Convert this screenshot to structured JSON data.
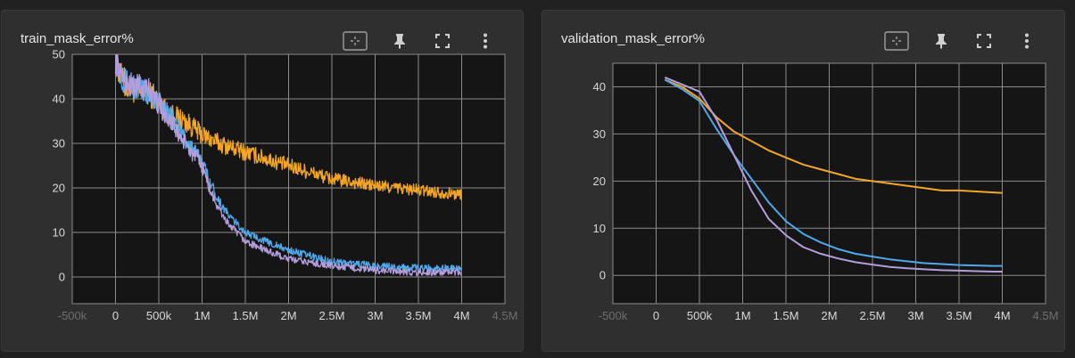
{
  "colors": {
    "orange": "#f5a623",
    "blue": "#4fa8ea",
    "lavender": "#b39ddb",
    "grid": "#8a8a8a",
    "plot_bg": "#151515"
  },
  "toolbar_icons": [
    "fit-domain-icon",
    "pin-icon",
    "fullscreen-icon",
    "more-vert-icon"
  ],
  "chart_data": [
    {
      "type": "line",
      "title": "train_mask_error%",
      "xlim": [
        -500000,
        4500000
      ],
      "ylim": [
        -6,
        50
      ],
      "x_ticks": [
        -500000,
        0,
        500000,
        1000000,
        1500000,
        2000000,
        2500000,
        3000000,
        3500000,
        4000000,
        4500000
      ],
      "x_tick_labels": [
        "-500k",
        "0",
        "500k",
        "1M",
        "1.5M",
        "2M",
        "2.5M",
        "3M",
        "3.5M",
        "4M",
        "4.5M"
      ],
      "y_ticks": [
        0,
        10,
        20,
        30,
        40,
        50
      ],
      "y_tick_labels": [
        "0",
        "10",
        "20",
        "30",
        "40",
        "50"
      ],
      "grid": true,
      "series": [
        {
          "color": "orange",
          "x": [
            0,
            100000,
            200000,
            400000,
            600000,
            800000,
            1000000,
            1200000,
            1500000,
            2000000,
            2500000,
            3000000,
            3500000,
            4000000
          ],
          "y": [
            49,
            43,
            42,
            41,
            37,
            35,
            32,
            30,
            28,
            25,
            22,
            20.5,
            19.5,
            18.5
          ]
        },
        {
          "color": "blue",
          "x": [
            0,
            100000,
            200000,
            400000,
            600000,
            800000,
            1000000,
            1100000,
            1200000,
            1300000,
            1500000,
            1800000,
            2000000,
            2500000,
            3000000,
            3500000,
            4000000
          ],
          "y": [
            49,
            44,
            43,
            41,
            37,
            31,
            26,
            21,
            17,
            14,
            10,
            7.5,
            6,
            3.5,
            2.5,
            2,
            2
          ]
        },
        {
          "color": "lavender",
          "x": [
            0,
            100000,
            200000,
            400000,
            600000,
            800000,
            1000000,
            1100000,
            1200000,
            1300000,
            1500000,
            1800000,
            2000000,
            2500000,
            3000000,
            3500000,
            4000000
          ],
          "y": [
            49,
            44,
            43,
            42,
            36,
            30,
            25,
            19,
            15,
            12,
            8,
            5.5,
            4,
            2.5,
            1.5,
            1,
            1
          ]
        }
      ]
    },
    {
      "type": "line",
      "title": "validation_mask_error%",
      "xlim": [
        -500000,
        4500000
      ],
      "ylim": [
        -6,
        45
      ],
      "x_ticks": [
        -500000,
        0,
        500000,
        1000000,
        1500000,
        2000000,
        2500000,
        3000000,
        3500000,
        4000000,
        4500000
      ],
      "x_tick_labels": [
        "-500k",
        "0",
        "500k",
        "1M",
        "1.5M",
        "2M",
        "2.5M",
        "3M",
        "3.5M",
        "4M",
        "4.5M"
      ],
      "y_ticks": [
        0,
        10,
        20,
        30,
        40
      ],
      "y_tick_labels": [
        "0",
        "10",
        "20",
        "30",
        "40"
      ],
      "grid": true,
      "series": [
        {
          "color": "orange",
          "x": [
            100000,
            300000,
            500000,
            700000,
            900000,
            1100000,
            1300000,
            1500000,
            1700000,
            1900000,
            2100000,
            2300000,
            2500000,
            2700000,
            2900000,
            3100000,
            3300000,
            3500000,
            3700000,
            3900000,
            4000000
          ],
          "y": [
            41.5,
            40,
            37.5,
            33.5,
            30.5,
            28.5,
            26.5,
            25,
            23.5,
            22.5,
            21.5,
            20.5,
            20,
            19.5,
            19,
            18.5,
            18,
            18,
            17.8,
            17.6,
            17.5
          ]
        },
        {
          "color": "blue",
          "x": [
            100000,
            300000,
            500000,
            700000,
            900000,
            1100000,
            1300000,
            1500000,
            1700000,
            1900000,
            2100000,
            2300000,
            2500000,
            2700000,
            2900000,
            3100000,
            3300000,
            3500000,
            3700000,
            3900000,
            4000000
          ],
          "y": [
            41.5,
            39.5,
            37,
            31,
            25.5,
            20.5,
            15.5,
            11.5,
            8.8,
            7,
            5.6,
            4.6,
            4,
            3.4,
            3,
            2.6,
            2.4,
            2.2,
            2.1,
            2,
            2
          ]
        },
        {
          "color": "lavender",
          "x": [
            100000,
            300000,
            500000,
            700000,
            900000,
            1100000,
            1300000,
            1500000,
            1700000,
            1900000,
            2100000,
            2300000,
            2500000,
            2700000,
            2900000,
            3100000,
            3300000,
            3500000,
            3700000,
            3900000,
            4000000
          ],
          "y": [
            42,
            40.5,
            39,
            33,
            25.5,
            18,
            12,
            8.5,
            6,
            4.6,
            3.6,
            2.8,
            2.3,
            1.8,
            1.5,
            1.3,
            1.1,
            1,
            0.9,
            0.8,
            0.8
          ]
        }
      ]
    }
  ]
}
